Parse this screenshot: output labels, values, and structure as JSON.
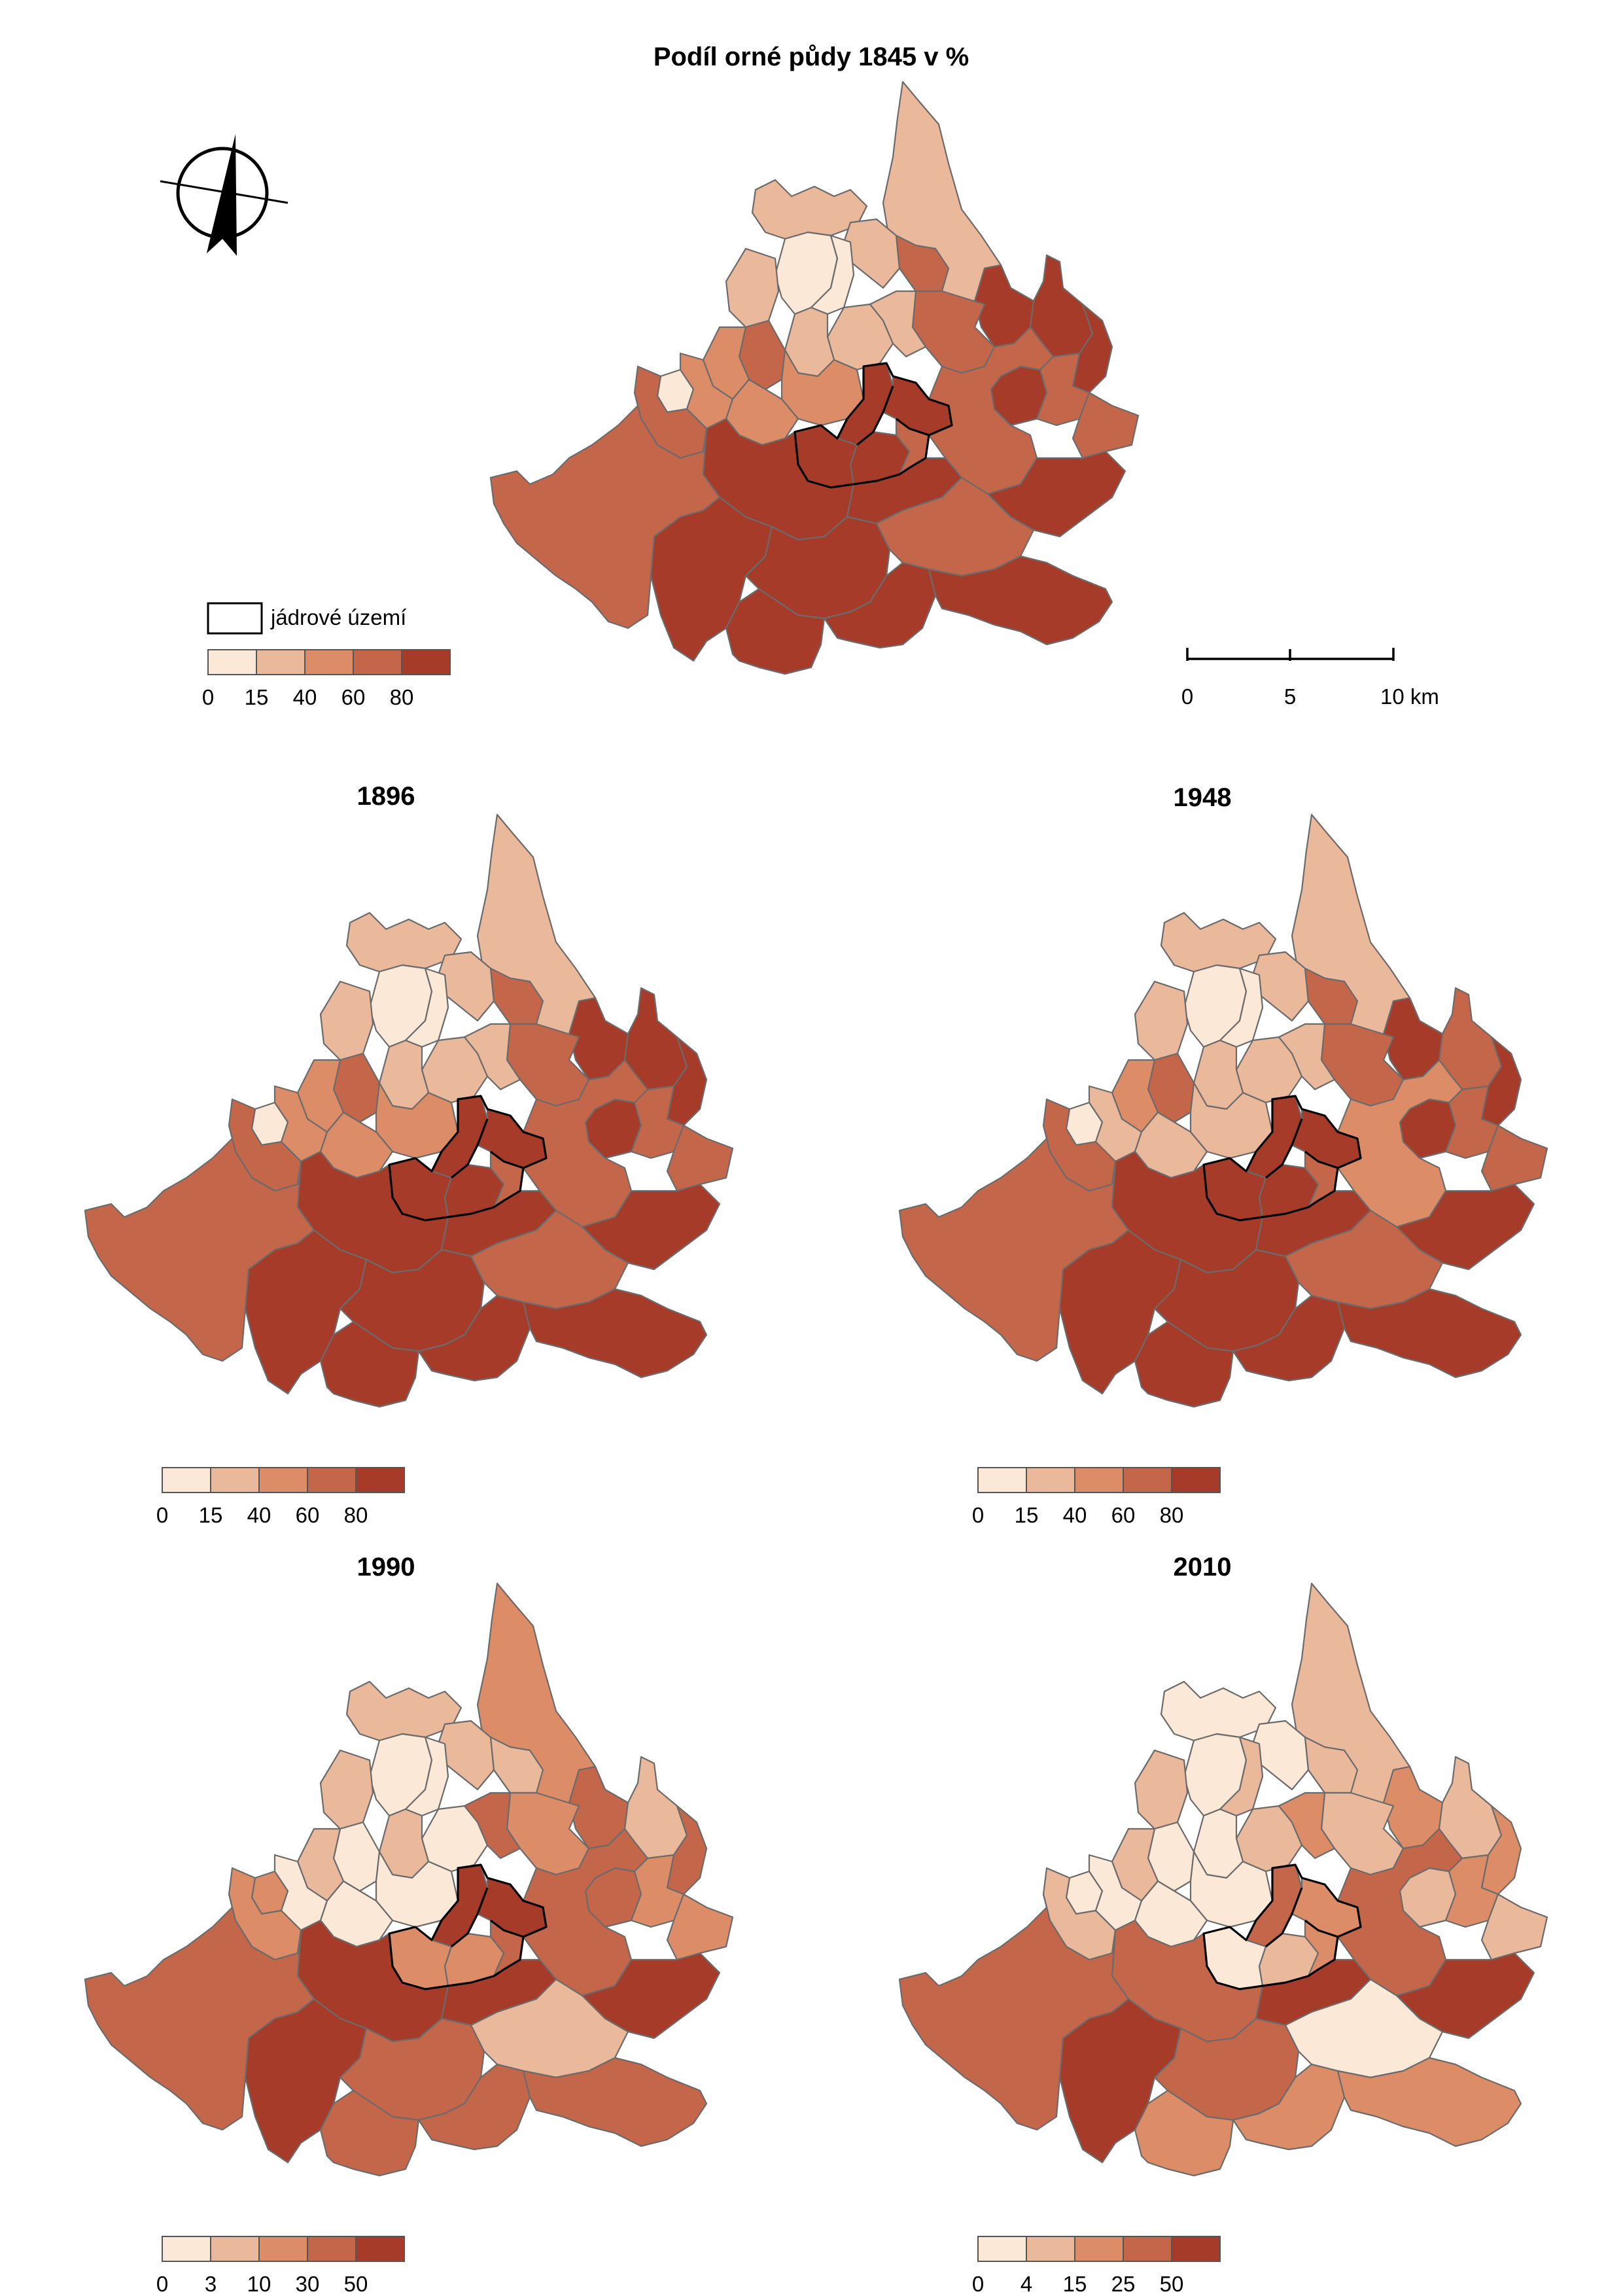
{
  "page": {
    "title": "Podíl orné půdy 1845 v %"
  },
  "legend": {
    "core_label": "jádrové území"
  },
  "scalebar": {
    "tick_labels": [
      "0",
      "5",
      "10 km"
    ]
  },
  "colors": [
    "#fbe8d6",
    "#eab89b",
    "#dc8d68",
    "#c4664a",
    "#a53b28"
  ],
  "maps": [
    {
      "year": "",
      "class_labels": [
        "0",
        "15",
        "40",
        "60",
        "80"
      ],
      "classes": [
        1,
        1,
        1,
        0,
        1,
        0,
        1,
        1,
        3,
        2,
        2,
        0,
        2,
        2,
        3,
        3,
        4,
        4,
        4,
        4,
        3,
        1,
        3,
        3,
        4,
        4,
        4,
        4,
        3,
        3,
        4,
        4,
        4,
        4,
        4,
        3,
        4,
        4,
        4,
        3
      ]
    },
    {
      "year": "1896",
      "class_labels": [
        "0",
        "15",
        "40",
        "60",
        "80"
      ],
      "classes": [
        1,
        1,
        1,
        0,
        1,
        0,
        1,
        1,
        3,
        2,
        2,
        0,
        2,
        2,
        3,
        3,
        4,
        4,
        4,
        4,
        3,
        1,
        3,
        3,
        4,
        4,
        4,
        4,
        3,
        3,
        4,
        4,
        4,
        4,
        4,
        3,
        4,
        4,
        4,
        3
      ]
    },
    {
      "year": "1948",
      "class_labels": [
        "0",
        "15",
        "40",
        "60",
        "80"
      ],
      "classes": [
        1,
        1,
        1,
        0,
        1,
        0,
        1,
        1,
        3,
        2,
        1,
        0,
        1,
        1,
        3,
        3,
        4,
        3,
        4,
        4,
        3,
        1,
        3,
        3,
        4,
        4,
        4,
        4,
        3,
        2,
        4,
        4,
        4,
        4,
        4,
        3,
        4,
        4,
        4,
        3
      ]
    },
    {
      "year": "1990",
      "class_labels": [
        "0",
        "3",
        "10",
        "30",
        "50"
      ],
      "classes": [
        2,
        1,
        1,
        0,
        1,
        0,
        0,
        1,
        0,
        1,
        0,
        2,
        0,
        0,
        2,
        1,
        3,
        1,
        3,
        3,
        2,
        3,
        2,
        2,
        4,
        4,
        2,
        2,
        3,
        3,
        4,
        4,
        4,
        4,
        3,
        1,
        3,
        3,
        3,
        3
      ]
    },
    {
      "year": "2010",
      "class_labels": [
        "0",
        "4",
        "15",
        "25",
        "50"
      ],
      "classes": [
        1,
        0,
        0,
        0,
        1,
        1,
        1,
        0,
        0,
        1,
        0,
        0,
        0,
        0,
        1,
        1,
        2,
        1,
        2,
        1,
        1,
        2,
        2,
        1,
        3,
        2,
        0,
        1,
        2,
        3,
        3,
        4,
        4,
        4,
        3,
        0,
        2,
        2,
        2,
        3
      ]
    }
  ]
}
